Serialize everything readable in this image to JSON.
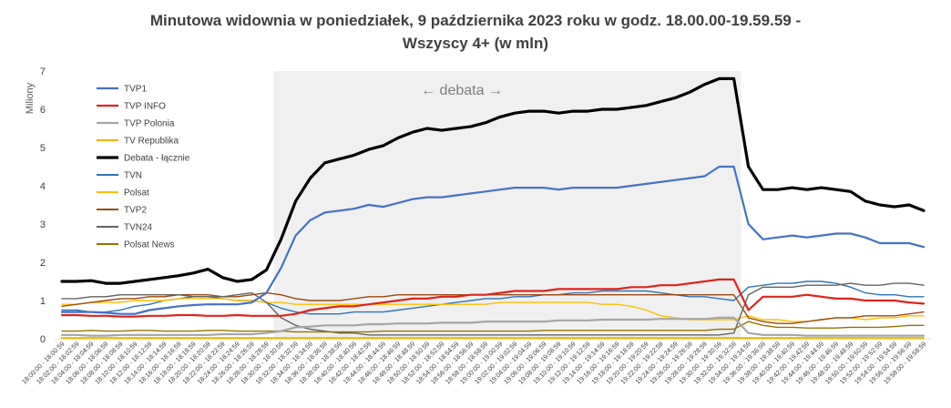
{
  "chart_data": {
    "type": "line",
    "title_line1": "Minutowa widownia w poniedziałek, 9 października 2023 roku w godz. 18.00.00-19.59.59 -",
    "title_line2": "Wszyscy 4+ (w mln)",
    "ylabel": "Miliony",
    "xlabel": "",
    "ylim": [
      0,
      7
    ],
    "yticks": [
      0,
      1,
      2,
      3,
      4,
      5,
      6,
      7
    ],
    "grid": false,
    "legend_position": "top-left",
    "annotation": "← debata →",
    "highlight_range": {
      "start": "18:30:00",
      "end": "19:34:00"
    },
    "categories": [
      "18:00:00 - 18:00:59",
      "18:02:00 - 18:02:59",
      "18:04:00 - 18:04:59",
      "18:06:00 - 18:06:59",
      "18:08:00 - 18:08:59",
      "18:10:00 - 18:10:59",
      "18:12:00 - 18:12:59",
      "18:14:00 - 18:14:59",
      "18:16:00 - 18:16:59",
      "18:18:00 - 18:18:59",
      "18:20:00 - 18:20:59",
      "18:22:00 - 18:22:59",
      "18:24:00 - 18:24:59",
      "18:26:00 - 18:26:59",
      "18:28:00 - 18:28:59",
      "18:30:00 - 18:30:59",
      "18:32:00 - 18:32:59",
      "18:34:00 - 18:34:59",
      "18:36:00 - 18:36:59",
      "18:38:00 - 18:38:59",
      "18:40:00 - 18:40:59",
      "18:42:00 - 18:42:59",
      "18:44:00 - 18:44:59",
      "18:46:00 - 18:46:59",
      "18:48:00 - 18:48:59",
      "18:50:00 - 18:50:59",
      "18:52:00 - 18:52:59",
      "18:54:00 - 18:54:59",
      "18:56:00 - 18:56:59",
      "18:58:00 - 18:58:59",
      "19:00:00 - 19:00:59",
      "19:02:00 - 19:02:59",
      "19:04:00 - 19:04:59",
      "19:06:00 - 19:06:59",
      "19:08:00 - 19:08:59",
      "19:10:00 - 19:10:59",
      "19:12:00 - 19:12:59",
      "19:14:00 - 19:14:59",
      "19:16:00 - 19:16:59",
      "19:18:00 - 19:18:59",
      "19:20:00 - 19:20:59",
      "19:22:00 - 19:22:59",
      "19:24:00 - 19:24:59",
      "19:26:00 - 19:26:59",
      "19:28:00 - 19:28:59",
      "19:30:00 - 19:30:59",
      "19:32:00 - 19:32:59",
      "19:34:00 - 19:34:59",
      "19:36:00 - 19:36:59",
      "19:38:00 - 19:38:59",
      "19:40:00 - 19:40:59",
      "19:42:00 - 19:42:59",
      "19:44:00 - 19:44:59",
      "19:46:00 - 19:46:59",
      "19:48:00 - 19:48:59",
      "19:50:00 - 19:50:59",
      "19:52:00 - 19:52:59",
      "19:54:00 - 19:54:59",
      "19:56:00 - 19:56:59",
      "19:58:00 - 19:58:59"
    ],
    "series": [
      {
        "name": "TVP1",
        "color": "#4472c4",
        "width": 2.2,
        "values": [
          0.7,
          0.7,
          0.7,
          0.68,
          0.65,
          0.65,
          0.75,
          0.8,
          0.85,
          0.88,
          0.9,
          0.9,
          0.9,
          0.95,
          1.2,
          1.85,
          2.7,
          3.1,
          3.3,
          3.35,
          3.4,
          3.5,
          3.45,
          3.55,
          3.65,
          3.7,
          3.7,
          3.75,
          3.8,
          3.85,
          3.9,
          3.95,
          3.95,
          3.95,
          3.9,
          3.95,
          3.95,
          3.95,
          3.95,
          4.0,
          4.05,
          4.1,
          4.15,
          4.2,
          4.25,
          4.5,
          4.5,
          3.0,
          2.6,
          2.65,
          2.7,
          2.65,
          2.7,
          2.75,
          2.75,
          2.65,
          2.5,
          2.5,
          2.5,
          2.4
        ]
      },
      {
        "name": "TVP INFO",
        "color": "#e0231a",
        "width": 2.2,
        "values": [
          0.62,
          0.62,
          0.6,
          0.6,
          0.58,
          0.58,
          0.6,
          0.6,
          0.62,
          0.62,
          0.6,
          0.6,
          0.62,
          0.6,
          0.6,
          0.6,
          0.65,
          0.75,
          0.8,
          0.85,
          0.85,
          0.9,
          0.95,
          1.0,
          1.05,
          1.05,
          1.1,
          1.1,
          1.15,
          1.15,
          1.2,
          1.25,
          1.25,
          1.25,
          1.3,
          1.3,
          1.3,
          1.3,
          1.3,
          1.35,
          1.35,
          1.4,
          1.4,
          1.45,
          1.5,
          1.55,
          1.55,
          0.75,
          1.1,
          1.1,
          1.1,
          1.15,
          1.1,
          1.05,
          1.05,
          1.0,
          1.0,
          1.0,
          0.95,
          0.92
        ]
      },
      {
        "name": "TVP Polonia",
        "color": "#a5a5a5",
        "width": 2.2,
        "values": [
          0.1,
          0.1,
          0.08,
          0.08,
          0.1,
          0.1,
          0.1,
          0.1,
          0.1,
          0.1,
          0.1,
          0.12,
          0.12,
          0.12,
          0.15,
          0.2,
          0.3,
          0.32,
          0.35,
          0.35,
          0.35,
          0.38,
          0.38,
          0.4,
          0.4,
          0.4,
          0.42,
          0.42,
          0.42,
          0.45,
          0.45,
          0.45,
          0.45,
          0.45,
          0.48,
          0.48,
          0.48,
          0.5,
          0.5,
          0.5,
          0.5,
          0.52,
          0.52,
          0.52,
          0.52,
          0.55,
          0.55,
          0.15,
          0.1,
          0.1,
          0.1,
          0.08,
          0.08,
          0.08,
          0.08,
          0.08,
          0.08,
          0.08,
          0.08,
          0.08
        ]
      },
      {
        "name": "TV Republika",
        "color": "#f2b700",
        "width": 2.2,
        "values": [
          0.02,
          0.02,
          0.02,
          0.02,
          0.02,
          0.02,
          0.02,
          0.02,
          0.02,
          0.02,
          0.02,
          0.02,
          0.02,
          0.02,
          0.02,
          0.02,
          0.02,
          0.02,
          0.02,
          0.02,
          0.02,
          0.02,
          0.02,
          0.02,
          0.02,
          0.02,
          0.02,
          0.02,
          0.02,
          0.02,
          0.02,
          0.02,
          0.02,
          0.02,
          0.02,
          0.02,
          0.02,
          0.02,
          0.02,
          0.02,
          0.02,
          0.02,
          0.02,
          0.02,
          0.02,
          0.02,
          0.02,
          0.02,
          0.02,
          0.02,
          0.02,
          0.02,
          0.02,
          0.02,
          0.02,
          0.02,
          0.02,
          0.02,
          0.02,
          0.02
        ]
      },
      {
        "name": "Debata - łącznie",
        "color": "#000000",
        "width": 3.2,
        "values": [
          1.5,
          1.5,
          1.52,
          1.45,
          1.45,
          1.5,
          1.55,
          1.6,
          1.65,
          1.72,
          1.82,
          1.6,
          1.5,
          1.55,
          1.8,
          2.6,
          3.6,
          4.2,
          4.6,
          4.7,
          4.8,
          4.95,
          5.05,
          5.25,
          5.4,
          5.5,
          5.45,
          5.5,
          5.55,
          5.65,
          5.8,
          5.9,
          5.95,
          5.95,
          5.9,
          5.95,
          5.95,
          6.0,
          6.0,
          6.05,
          6.1,
          6.2,
          6.3,
          6.45,
          6.65,
          6.8,
          6.8,
          4.5,
          3.9,
          3.9,
          3.95,
          3.9,
          3.95,
          3.9,
          3.85,
          3.6,
          3.5,
          3.45,
          3.5,
          3.35
        ]
      },
      {
        "name": "TVN",
        "color": "#2e75b6",
        "width": 1.4,
        "values": [
          0.75,
          0.75,
          0.7,
          0.7,
          0.75,
          0.85,
          0.9,
          1.0,
          1.05,
          1.1,
          1.1,
          1.05,
          1.0,
          1.0,
          0.95,
          0.8,
          0.7,
          0.65,
          0.65,
          0.65,
          0.7,
          0.7,
          0.7,
          0.75,
          0.8,
          0.85,
          0.9,
          0.95,
          1.0,
          1.05,
          1.05,
          1.1,
          1.1,
          1.15,
          1.15,
          1.2,
          1.2,
          1.25,
          1.25,
          1.25,
          1.25,
          1.2,
          1.15,
          1.1,
          1.1,
          1.05,
          1.0,
          1.35,
          1.4,
          1.45,
          1.45,
          1.5,
          1.5,
          1.45,
          1.35,
          1.2,
          1.15,
          1.15,
          1.1,
          1.1
        ]
      },
      {
        "name": "Polsat",
        "color": "#ffc000",
        "width": 1.4,
        "values": [
          0.9,
          0.9,
          0.95,
          0.95,
          0.95,
          1.0,
          1.0,
          1.0,
          1.05,
          1.05,
          1.05,
          1.05,
          1.0,
          1.0,
          0.95,
          0.95,
          0.9,
          0.9,
          0.9,
          0.9,
          0.9,
          0.9,
          0.9,
          0.9,
          0.9,
          0.9,
          0.9,
          0.9,
          0.9,
          0.9,
          0.95,
          0.95,
          0.95,
          0.95,
          0.95,
          0.95,
          0.95,
          0.9,
          0.9,
          0.85,
          0.75,
          0.6,
          0.55,
          0.5,
          0.5,
          0.5,
          0.5,
          0.6,
          0.5,
          0.5,
          0.45,
          0.45,
          0.5,
          0.55,
          0.55,
          0.5,
          0.55,
          0.55,
          0.6,
          0.6
        ]
      },
      {
        "name": "TVP2",
        "color": "#9e480e",
        "width": 1.4,
        "values": [
          0.85,
          0.9,
          0.95,
          1.0,
          1.05,
          1.05,
          1.1,
          1.1,
          1.15,
          1.15,
          1.15,
          1.1,
          1.1,
          1.15,
          1.2,
          1.15,
          1.05,
          1.0,
          1.0,
          1.0,
          1.05,
          1.1,
          1.1,
          1.15,
          1.15,
          1.15,
          1.15,
          1.15,
          1.15,
          1.15,
          1.15,
          1.15,
          1.15,
          1.15,
          1.15,
          1.15,
          1.15,
          1.15,
          1.15,
          1.15,
          1.15,
          1.15,
          1.15,
          1.15,
          1.15,
          1.15,
          1.15,
          0.55,
          0.45,
          0.4,
          0.4,
          0.45,
          0.5,
          0.55,
          0.55,
          0.6,
          0.6,
          0.6,
          0.65,
          0.7
        ]
      },
      {
        "name": "TVN24",
        "color": "#636363",
        "width": 1.4,
        "values": [
          1.05,
          1.05,
          1.1,
          1.1,
          1.15,
          1.15,
          1.15,
          1.15,
          1.15,
          1.1,
          1.1,
          1.1,
          1.15,
          1.2,
          0.95,
          0.55,
          0.35,
          0.25,
          0.2,
          0.15,
          0.15,
          0.1,
          0.1,
          0.1,
          0.1,
          0.1,
          0.1,
          0.1,
          0.1,
          0.1,
          0.1,
          0.1,
          0.1,
          0.1,
          0.1,
          0.1,
          0.1,
          0.1,
          0.1,
          0.1,
          0.1,
          0.1,
          0.1,
          0.1,
          0.1,
          0.1,
          0.15,
          1.15,
          1.35,
          1.35,
          1.35,
          1.4,
          1.4,
          1.4,
          1.45,
          1.4,
          1.4,
          1.45,
          1.45,
          1.4
        ]
      },
      {
        "name": "Polsat News",
        "color": "#997300",
        "width": 1.4,
        "values": [
          0.2,
          0.2,
          0.22,
          0.2,
          0.2,
          0.22,
          0.22,
          0.2,
          0.2,
          0.2,
          0.22,
          0.22,
          0.2,
          0.2,
          0.2,
          0.2,
          0.18,
          0.18,
          0.18,
          0.18,
          0.18,
          0.18,
          0.2,
          0.2,
          0.2,
          0.2,
          0.2,
          0.2,
          0.2,
          0.2,
          0.2,
          0.2,
          0.2,
          0.22,
          0.22,
          0.22,
          0.22,
          0.22,
          0.22,
          0.22,
          0.22,
          0.22,
          0.22,
          0.22,
          0.22,
          0.25,
          0.25,
          0.45,
          0.35,
          0.3,
          0.3,
          0.28,
          0.28,
          0.28,
          0.3,
          0.3,
          0.3,
          0.32,
          0.35,
          0.35
        ]
      }
    ]
  }
}
